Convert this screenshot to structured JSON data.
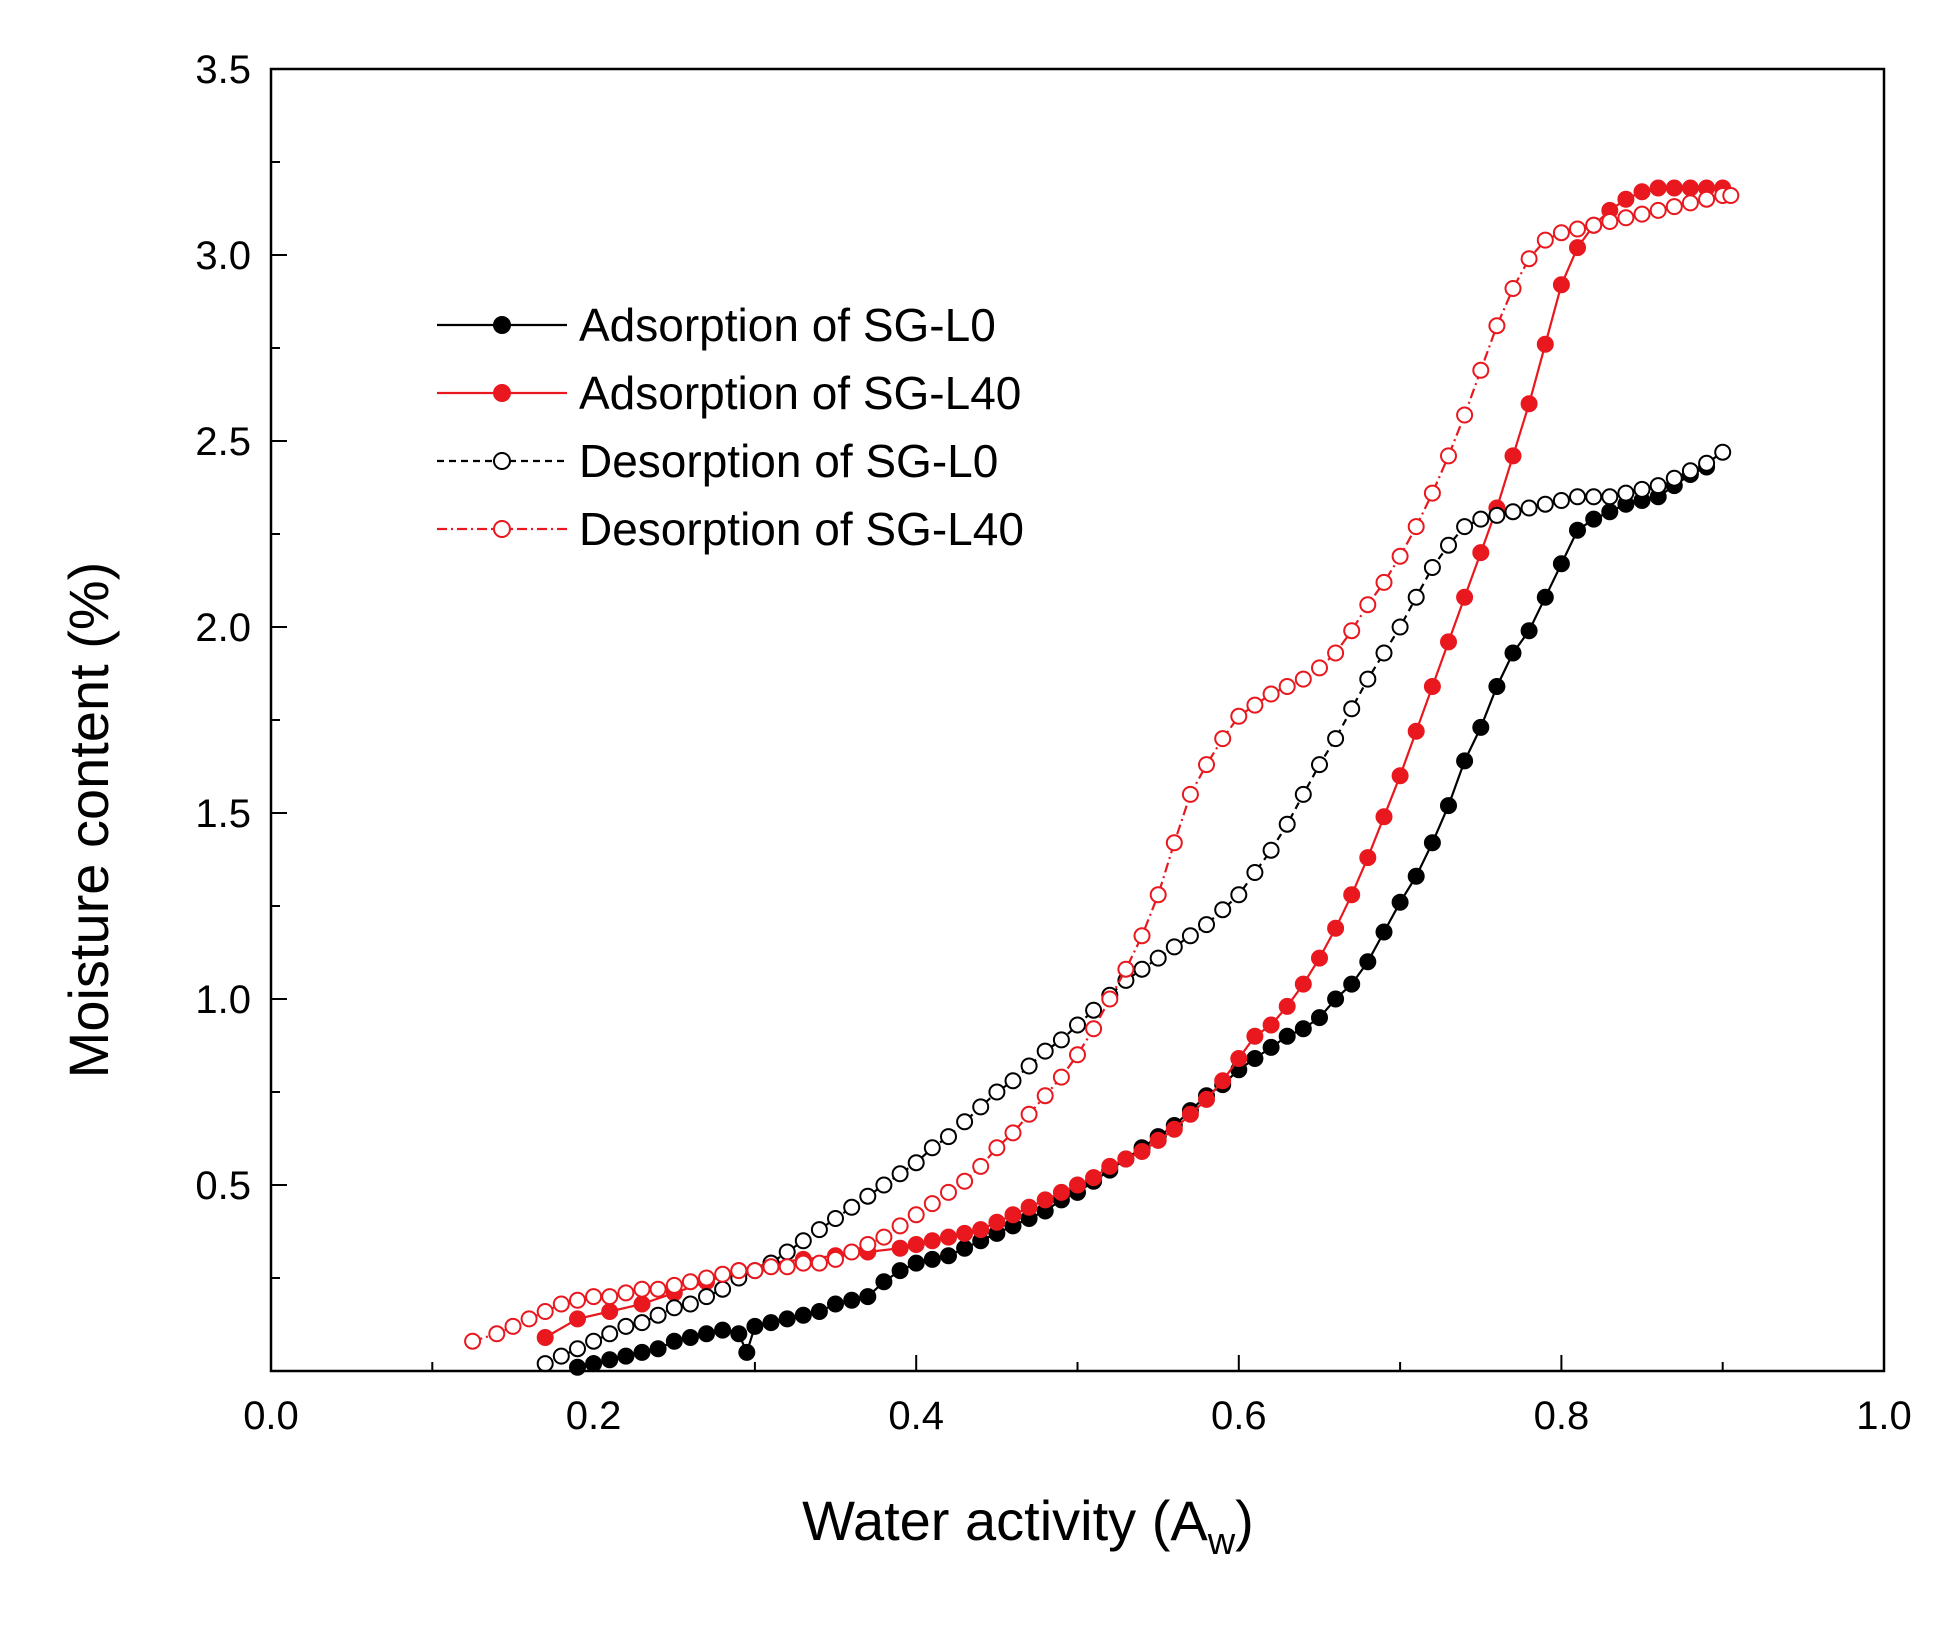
{
  "chart_data": {
    "type": "scatter",
    "xlabel": "Water activity (A",
    "xlabel_sub": "w",
    "xlabel_close": ")",
    "ylabel": "Moisture content (%)",
    "xlim": [
      0.0,
      1.0
    ],
    "ylim": [
      0.0,
      3.5
    ],
    "x_ticks": [
      0.0,
      0.2,
      0.4,
      0.6,
      0.8,
      1.0
    ],
    "x_tick_labels": [
      "0.0",
      "0.2",
      "0.4",
      "0.6",
      "0.8",
      "1.0"
    ],
    "y_ticks": [
      0.5,
      1.0,
      1.5,
      2.0,
      2.5,
      3.0,
      3.5
    ],
    "y_tick_labels": [
      "0.5",
      "1.0",
      "1.5",
      "2.0",
      "2.5",
      "3.0",
      "3.5"
    ],
    "grid": false,
    "legend_position": "upper-left",
    "series": [
      {
        "name": "Adsorption of SG-L0",
        "color": "#000000",
        "marker": "filled-circle",
        "line": "solid",
        "x": [
          0.19,
          0.2,
          0.21,
          0.22,
          0.23,
          0.24,
          0.25,
          0.26,
          0.27,
          0.28,
          0.29,
          0.295,
          0.3,
          0.31,
          0.32,
          0.33,
          0.34,
          0.35,
          0.36,
          0.37,
          0.38,
          0.39,
          0.4,
          0.41,
          0.42,
          0.43,
          0.44,
          0.45,
          0.46,
          0.47,
          0.48,
          0.49,
          0.5,
          0.51,
          0.52,
          0.53,
          0.54,
          0.55,
          0.56,
          0.57,
          0.58,
          0.59,
          0.6,
          0.61,
          0.62,
          0.63,
          0.64,
          0.65,
          0.66,
          0.67,
          0.68,
          0.69,
          0.7,
          0.71,
          0.72,
          0.73,
          0.74,
          0.75,
          0.76,
          0.77,
          0.78,
          0.79,
          0.8,
          0.81,
          0.82,
          0.83,
          0.84,
          0.85,
          0.86,
          0.87,
          0.88,
          0.89
        ],
        "values": [
          0.01,
          0.02,
          0.03,
          0.04,
          0.05,
          0.06,
          0.08,
          0.09,
          0.1,
          0.11,
          0.1,
          0.05,
          0.12,
          0.13,
          0.14,
          0.15,
          0.16,
          0.18,
          0.19,
          0.2,
          0.24,
          0.27,
          0.29,
          0.3,
          0.31,
          0.33,
          0.35,
          0.37,
          0.39,
          0.41,
          0.43,
          0.46,
          0.48,
          0.51,
          0.54,
          0.57,
          0.6,
          0.63,
          0.66,
          0.7,
          0.74,
          0.77,
          0.81,
          0.84,
          0.87,
          0.9,
          0.92,
          0.95,
          1.0,
          1.04,
          1.1,
          1.18,
          1.26,
          1.33,
          1.42,
          1.52,
          1.64,
          1.73,
          1.84,
          1.93,
          1.99,
          2.08,
          2.17,
          2.26,
          2.29,
          2.31,
          2.33,
          2.34,
          2.35,
          2.38,
          2.41,
          2.43
        ]
      },
      {
        "name": "Adsorption of SG-L40",
        "color": "#e8181e",
        "marker": "filled-circle",
        "line": "solid",
        "x": [
          0.17,
          0.19,
          0.21,
          0.23,
          0.25,
          0.27,
          0.29,
          0.31,
          0.33,
          0.35,
          0.37,
          0.39,
          0.4,
          0.41,
          0.42,
          0.43,
          0.44,
          0.45,
          0.46,
          0.47,
          0.48,
          0.49,
          0.5,
          0.51,
          0.52,
          0.53,
          0.54,
          0.55,
          0.56,
          0.57,
          0.58,
          0.59,
          0.6,
          0.61,
          0.62,
          0.63,
          0.64,
          0.65,
          0.66,
          0.67,
          0.68,
          0.69,
          0.7,
          0.71,
          0.72,
          0.73,
          0.74,
          0.75,
          0.76,
          0.77,
          0.78,
          0.79,
          0.8,
          0.81,
          0.82,
          0.83,
          0.84,
          0.85,
          0.86,
          0.87,
          0.88,
          0.89,
          0.9
        ],
        "values": [
          0.09,
          0.14,
          0.16,
          0.18,
          0.21,
          0.24,
          0.27,
          0.29,
          0.3,
          0.31,
          0.32,
          0.33,
          0.34,
          0.35,
          0.36,
          0.37,
          0.38,
          0.4,
          0.42,
          0.44,
          0.46,
          0.48,
          0.5,
          0.52,
          0.55,
          0.57,
          0.59,
          0.62,
          0.65,
          0.69,
          0.73,
          0.78,
          0.84,
          0.9,
          0.93,
          0.98,
          1.04,
          1.11,
          1.19,
          1.28,
          1.38,
          1.49,
          1.6,
          1.72,
          1.84,
          1.96,
          2.08,
          2.2,
          2.32,
          2.46,
          2.6,
          2.76,
          2.92,
          3.02,
          3.08,
          3.12,
          3.15,
          3.17,
          3.18,
          3.18,
          3.18,
          3.18,
          3.18
        ]
      },
      {
        "name": "Desorption of SG-L0",
        "color": "#000000",
        "marker": "open-circle",
        "line": "dashed",
        "x": [
          0.17,
          0.18,
          0.19,
          0.2,
          0.21,
          0.22,
          0.23,
          0.24,
          0.25,
          0.26,
          0.27,
          0.28,
          0.29,
          0.3,
          0.31,
          0.32,
          0.33,
          0.34,
          0.35,
          0.36,
          0.37,
          0.38,
          0.39,
          0.4,
          0.41,
          0.42,
          0.43,
          0.44,
          0.45,
          0.46,
          0.47,
          0.48,
          0.49,
          0.5,
          0.51,
          0.52,
          0.53,
          0.54,
          0.55,
          0.56,
          0.57,
          0.58,
          0.59,
          0.6,
          0.61,
          0.62,
          0.63,
          0.64,
          0.65,
          0.66,
          0.67,
          0.68,
          0.69,
          0.7,
          0.71,
          0.72,
          0.73,
          0.74,
          0.75,
          0.76,
          0.77,
          0.78,
          0.79,
          0.8,
          0.81,
          0.82,
          0.83,
          0.84,
          0.85,
          0.86,
          0.87,
          0.88,
          0.89,
          0.9
        ],
        "values": [
          0.02,
          0.04,
          0.06,
          0.08,
          0.1,
          0.12,
          0.13,
          0.15,
          0.17,
          0.18,
          0.2,
          0.22,
          0.25,
          0.27,
          0.29,
          0.32,
          0.35,
          0.38,
          0.41,
          0.44,
          0.47,
          0.5,
          0.53,
          0.56,
          0.6,
          0.63,
          0.67,
          0.71,
          0.75,
          0.78,
          0.82,
          0.86,
          0.89,
          0.93,
          0.97,
          1.01,
          1.05,
          1.08,
          1.11,
          1.14,
          1.17,
          1.2,
          1.24,
          1.28,
          1.34,
          1.4,
          1.47,
          1.55,
          1.63,
          1.7,
          1.78,
          1.86,
          1.93,
          2.0,
          2.08,
          2.16,
          2.22,
          2.27,
          2.29,
          2.3,
          2.31,
          2.32,
          2.33,
          2.34,
          2.35,
          2.35,
          2.35,
          2.36,
          2.37,
          2.38,
          2.4,
          2.42,
          2.44,
          2.47
        ]
      },
      {
        "name": "Desorption of SG-L40",
        "color": "#e8181e",
        "marker": "open-circle",
        "line": "dash-dot",
        "x": [
          0.125,
          0.14,
          0.15,
          0.16,
          0.17,
          0.18,
          0.19,
          0.2,
          0.21,
          0.22,
          0.23,
          0.24,
          0.25,
          0.26,
          0.27,
          0.28,
          0.29,
          0.3,
          0.31,
          0.32,
          0.33,
          0.34,
          0.35,
          0.36,
          0.37,
          0.38,
          0.39,
          0.4,
          0.41,
          0.42,
          0.43,
          0.44,
          0.45,
          0.46,
          0.47,
          0.48,
          0.49,
          0.5,
          0.51,
          0.52,
          0.53,
          0.54,
          0.55,
          0.56,
          0.57,
          0.58,
          0.59,
          0.6,
          0.61,
          0.62,
          0.63,
          0.64,
          0.65,
          0.66,
          0.67,
          0.68,
          0.69,
          0.7,
          0.71,
          0.72,
          0.73,
          0.74,
          0.75,
          0.76,
          0.77,
          0.78,
          0.79,
          0.8,
          0.81,
          0.82,
          0.83,
          0.84,
          0.85,
          0.86,
          0.87,
          0.88,
          0.89,
          0.9,
          0.905
        ],
        "values": [
          0.08,
          0.1,
          0.12,
          0.14,
          0.16,
          0.18,
          0.19,
          0.2,
          0.2,
          0.21,
          0.22,
          0.22,
          0.23,
          0.24,
          0.25,
          0.26,
          0.27,
          0.27,
          0.28,
          0.28,
          0.29,
          0.29,
          0.3,
          0.32,
          0.34,
          0.36,
          0.39,
          0.42,
          0.45,
          0.48,
          0.51,
          0.55,
          0.6,
          0.64,
          0.69,
          0.74,
          0.79,
          0.85,
          0.92,
          1.0,
          1.08,
          1.17,
          1.28,
          1.42,
          1.55,
          1.63,
          1.7,
          1.76,
          1.79,
          1.82,
          1.84,
          1.86,
          1.89,
          1.93,
          1.99,
          2.06,
          2.12,
          2.19,
          2.27,
          2.36,
          2.46,
          2.57,
          2.69,
          2.81,
          2.91,
          2.99,
          3.04,
          3.06,
          3.07,
          3.08,
          3.09,
          3.1,
          3.11,
          3.12,
          3.13,
          3.14,
          3.15,
          3.16,
          3.16
        ]
      }
    ]
  }
}
